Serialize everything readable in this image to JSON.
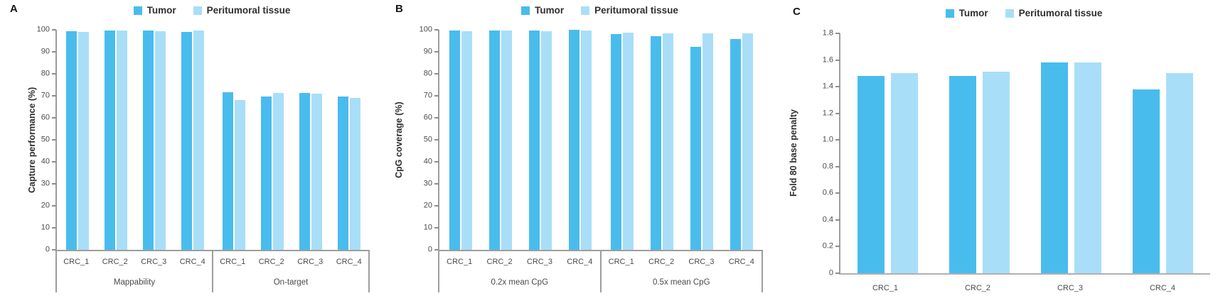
{
  "figure": {
    "legend": {
      "series": [
        {
          "label": "Tumor",
          "color": "#49bcee"
        },
        {
          "label": "Peritumoral tissue",
          "color": "#a9def8"
        }
      ]
    }
  },
  "chart_data": [
    {
      "type": "bar",
      "panel_label": "A",
      "title": "",
      "xlabel": "",
      "ylabel": "Capture performance (%)",
      "ylim": [
        0,
        100
      ],
      "ymax": 100,
      "yticks": [
        "100",
        "90",
        "80",
        "70",
        "60",
        "50",
        "40",
        "30",
        "20",
        "10",
        "0"
      ],
      "grid": false,
      "legend_position": "top-center",
      "axis_boxed": true,
      "groups": [
        {
          "label": "Mappability",
          "categories": [
            "CRC_1",
            "CRC_2",
            "CRC_3",
            "CRC_4"
          ],
          "series": [
            {
              "name": "Tumor",
              "values": [
                99.2,
                99.6,
                99.6,
                98.9
              ]
            },
            {
              "name": "Peritumoral tissue",
              "values": [
                98.9,
                99.6,
                99.2,
                99.8
              ]
            }
          ]
        },
        {
          "label": "On-target",
          "categories": [
            "CRC_1",
            "CRC_2",
            "CRC_3",
            "CRC_4"
          ],
          "series": [
            {
              "name": "Tumor",
              "values": [
                71.5,
                69.8,
                71.4,
                69.8
              ]
            },
            {
              "name": "Peritumoral tissue",
              "values": [
                68.0,
                71.3,
                70.9,
                69.0
              ]
            }
          ]
        }
      ]
    },
    {
      "type": "bar",
      "panel_label": "B",
      "title": "",
      "xlabel": "",
      "ylabel": "CpG coverage (%)",
      "ylim": [
        0,
        100
      ],
      "ymax": 100,
      "yticks": [
        "100",
        "90",
        "80",
        "70",
        "60",
        "50",
        "40",
        "30",
        "20",
        "10",
        "0"
      ],
      "grid": false,
      "legend_position": "top-center",
      "axis_boxed": true,
      "groups": [
        {
          "label": "0.2x mean CpG",
          "categories": [
            "CRC_1",
            "CRC_2",
            "CRC_3",
            "CRC_4"
          ],
          "series": [
            {
              "name": "Tumor",
              "values": [
                99.7,
                99.8,
                99.8,
                99.9
              ]
            },
            {
              "name": "Peritumoral tissue",
              "values": [
                99.4,
                99.6,
                99.4,
                99.6
              ]
            }
          ]
        },
        {
          "label": "0.5x mean CpG",
          "categories": [
            "CRC_1",
            "CRC_2",
            "CRC_3",
            "CRC_4"
          ],
          "series": [
            {
              "name": "Tumor",
              "values": [
                98.2,
                97.0,
                92.4,
                95.8
              ]
            },
            {
              "name": "Peritumoral tissue",
              "values": [
                98.6,
                98.5,
                98.5,
                98.3
              ]
            }
          ]
        }
      ]
    },
    {
      "type": "bar",
      "panel_label": "C",
      "title": "",
      "xlabel": "",
      "ylabel": "Fold 80 base penalty",
      "ylim": [
        0,
        1.8
      ],
      "ymax": 1.8,
      "yticks": [
        "1.8",
        "1.6",
        "1.4",
        "1.2",
        "1.0",
        "0.8",
        "0.6",
        "0.4",
        "0.2",
        "0"
      ],
      "grid": false,
      "legend_position": "top-center",
      "axis_boxed": false,
      "groups": [
        {
          "label": "",
          "categories": [
            "CRC_1",
            "CRC_2",
            "CRC_3",
            "CRC_4"
          ],
          "series": [
            {
              "name": "Tumor",
              "values": [
                1.48,
                1.48,
                1.58,
                1.38
              ]
            },
            {
              "name": "Peritumoral tissue",
              "values": [
                1.5,
                1.51,
                1.58,
                1.5
              ]
            }
          ]
        }
      ]
    }
  ]
}
